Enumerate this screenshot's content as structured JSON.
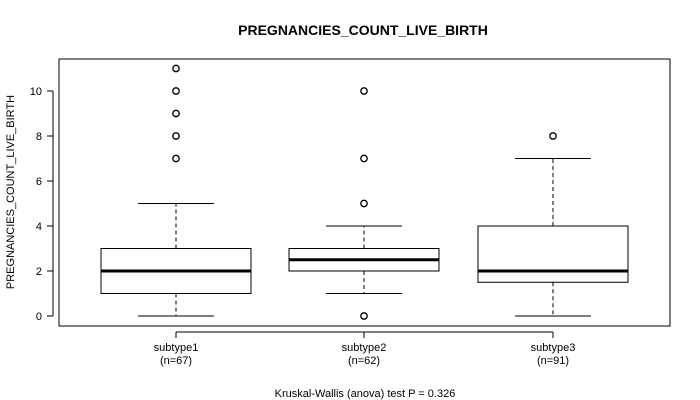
{
  "chart_data": {
    "type": "boxplot",
    "title": "PREGNANCIES_COUNT_LIVE_BIRTH",
    "ylabel": "PREGNANCIES_COUNT_LIVE_BIRTH",
    "xlabel": "",
    "ylim": [
      -0.4,
      11.4
    ],
    "yticks": [
      0,
      2,
      4,
      6,
      8,
      10
    ],
    "caption": "Kruskal-Wallis (anova) test P = 0.326",
    "groups": [
      {
        "name": "subtype1",
        "n_label": "(n=67)",
        "q1": 1,
        "median": 2,
        "q3": 3,
        "whisker_low": 0,
        "whisker_high": 5,
        "outliers": [
          7,
          8,
          9,
          10,
          11
        ]
      },
      {
        "name": "subtype2",
        "n_label": "(n=62)",
        "q1": 2,
        "median": 2.5,
        "q3": 3,
        "whisker_low": 1,
        "whisker_high": 4,
        "outliers": [
          0,
          5,
          7,
          10
        ]
      },
      {
        "name": "subtype3",
        "n_label": "(n=91)",
        "q1": 1.5,
        "median": 2,
        "q3": 4,
        "whisker_low": 0,
        "whisker_high": 7,
        "outliers": [
          8
        ]
      }
    ]
  }
}
